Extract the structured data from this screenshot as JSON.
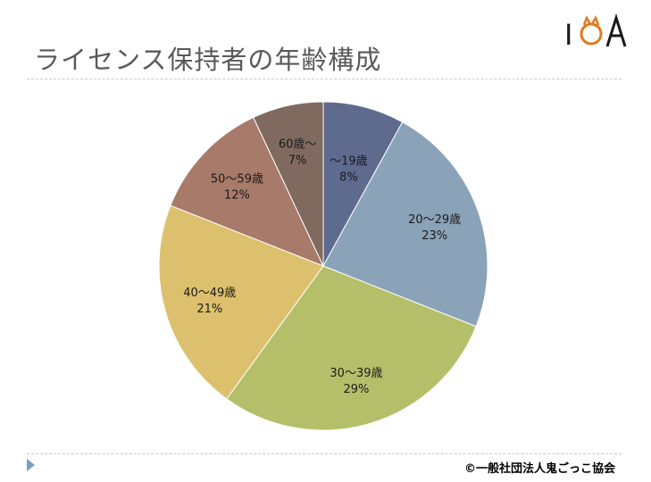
{
  "header": {
    "title": "ライセンス保持者の年齢構成",
    "logo_text": "IOA"
  },
  "footer": {
    "copyright": "©一般社団法人鬼ごっこ協会"
  },
  "chart_data": {
    "type": "pie",
    "title": "",
    "start_angle_deg": 0,
    "direction": "clockwise",
    "slices": [
      {
        "label": "～19歳",
        "percent_label": "8%",
        "value": 8,
        "color": "#5f6a8f"
      },
      {
        "label": "20～29歳",
        "percent_label": "23%",
        "value": 23,
        "color": "#8ba3b8"
      },
      {
        "label": "30～39歳",
        "percent_label": "29%",
        "value": 29,
        "color": "#b5bf6a"
      },
      {
        "label": "40～49歳",
        "percent_label": "21%",
        "value": 21,
        "color": "#dcc06d"
      },
      {
        "label": "50～59歳",
        "percent_label": "12%",
        "value": 12,
        "color": "#a77a69"
      },
      {
        "label": "60歳～",
        "percent_label": "7%",
        "value": 7,
        "color": "#806a5f"
      }
    ]
  }
}
